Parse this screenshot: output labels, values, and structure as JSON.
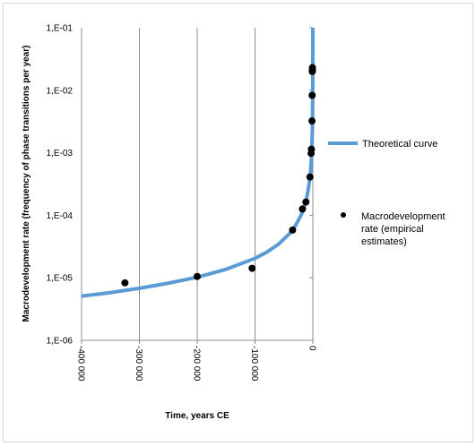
{
  "chart_data": {
    "type": "scatter",
    "title": "",
    "xlabel": "Time, years CE",
    "ylabel": "Macrodevelopment rate (frequency of phase transitions per year)",
    "x_scale": "linear",
    "y_scale": "log",
    "xlim": [
      -400000,
      0
    ],
    "ylim": [
      1e-06,
      0.1
    ],
    "grid": "vertical",
    "legend_position": "right",
    "x_ticks": [
      -400000,
      -300000,
      -200000,
      -100000,
      0
    ],
    "x_tick_labels": [
      "-400 000",
      "-300 000",
      "-200 000",
      "-100 000",
      "0"
    ],
    "y_ticks": [
      1e-06,
      1e-05,
      0.0001,
      0.001,
      0.01,
      0.1
    ],
    "y_tick_labels": [
      "1,E-06",
      "1,E-05",
      "1,E-04",
      "1,E-03",
      "1,E-02",
      "1,E-01"
    ],
    "series": [
      {
        "name": "Theoretical curve",
        "kind": "line",
        "color": "#5b9bd5",
        "x": [
          -400000,
          -350000,
          -300000,
          -250000,
          -200000,
          -150000,
          -100000,
          -80000,
          -60000,
          -40000,
          -30000,
          -20000,
          -15000,
          -12000,
          -10000,
          -8000,
          -6000,
          -5000,
          -4000,
          -3000,
          -2000,
          -1500,
          -1000,
          -700,
          -500,
          -300,
          -150,
          0
        ],
        "y": [
          5.1e-06,
          5.8e-06,
          6.8e-06,
          8.2e-06,
          1.02e-05,
          1.37e-05,
          2.05e-05,
          2.56e-05,
          3.41e-05,
          5.12e-05,
          6.83e-05,
          0.0001024,
          0.0001366,
          0.0001707,
          0.0002049,
          0.0002561,
          0.0003415,
          0.0004098,
          0.0005122,
          0.000683,
          0.0010245,
          0.001366,
          0.002049,
          0.0029271,
          0.004098,
          0.00683,
          0.01366,
          0.1
        ]
      },
      {
        "name": "Macrodevelopment rate (empirical estimates)",
        "name_lines": [
          "Macrodevelopment",
          "rate (empirical",
          "estimates)"
        ],
        "kind": "scatter",
        "color": "#000000",
        "x": [
          -325000,
          -200000,
          -105000,
          -35000,
          -18000,
          -12000,
          -5000,
          -3000,
          -2500,
          -1500,
          -1200,
          -1000,
          -800,
          -700
        ],
        "y": [
          8.3e-06,
          1.05e-05,
          1.42e-05,
          5.8e-05,
          0.000126,
          0.000163,
          0.00041,
          0.00098,
          0.00114,
          0.00323,
          0.0083,
          0.02,
          0.021,
          0.023
        ]
      }
    ]
  }
}
